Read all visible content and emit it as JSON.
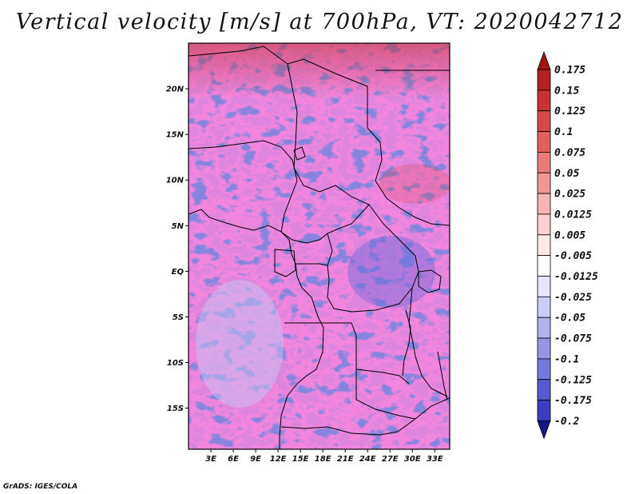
{
  "title": "Vertical velocity [m/s] at 700hPa, VT: 2020042712",
  "credit": "GrADS: IGES/COLA",
  "map": {
    "field": "vertical velocity at 700hPa",
    "lat_range": [
      -19.5,
      25
    ],
    "lon_range": [
      0,
      35
    ],
    "lat_ticks": [
      {
        "lat": 20,
        "label": "20N"
      },
      {
        "lat": 15,
        "label": "15N"
      },
      {
        "lat": 10,
        "label": "10N"
      },
      {
        "lat": 5,
        "label": "5N"
      },
      {
        "lat": 0,
        "label": "EQ"
      },
      {
        "lat": -5,
        "label": "5S"
      },
      {
        "lat": -10,
        "label": "10S"
      },
      {
        "lat": -15,
        "label": "15S"
      }
    ],
    "lon_ticks": [
      {
        "lon": 3,
        "label": "3E"
      },
      {
        "lon": 6,
        "label": "6E"
      },
      {
        "lon": 9,
        "label": "9E"
      },
      {
        "lon": 12,
        "label": "12E"
      },
      {
        "lon": 15,
        "label": "15E"
      },
      {
        "lon": 18,
        "label": "18E"
      },
      {
        "lon": 21,
        "label": "21E"
      },
      {
        "lon": 24,
        "label": "24E"
      },
      {
        "lon": 27,
        "label": "27E"
      },
      {
        "lon": 30,
        "label": "30E"
      },
      {
        "lon": 33,
        "label": "33E"
      }
    ]
  },
  "colorbar": {
    "levels": [
      {
        "label": "0.175",
        "color": "#b22020"
      },
      {
        "label": "0.15",
        "color": "#c83232"
      },
      {
        "label": "0.125",
        "color": "#d84848"
      },
      {
        "label": "0.1",
        "color": "#e45e5e"
      },
      {
        "label": "0.075",
        "color": "#ec7a7a"
      },
      {
        "label": "0.05",
        "color": "#f29696"
      },
      {
        "label": "0.025",
        "color": "#f7b4b4"
      },
      {
        "label": "0.0125",
        "color": "#fad0d0"
      },
      {
        "label": "0.005",
        "color": "#fde8e8"
      },
      {
        "label": "-0.005",
        "color": "#ffffff"
      },
      {
        "label": "-0.0125",
        "color": "#e6e6fb"
      },
      {
        "label": "-0.025",
        "color": "#ccccf5"
      },
      {
        "label": "-0.05",
        "color": "#b2b2ef"
      },
      {
        "label": "-0.075",
        "color": "#9696e6"
      },
      {
        "label": "-0.1",
        "color": "#7878dc"
      },
      {
        "label": "-0.125",
        "color": "#5a5ad0"
      },
      {
        "label": "-0.175",
        "color": "#3c3cc0"
      },
      {
        "label": "-0.2",
        "color": "#2828a6"
      }
    ],
    "top_cap_color": "#a01414",
    "bottom_cap_color": "#16168a"
  }
}
